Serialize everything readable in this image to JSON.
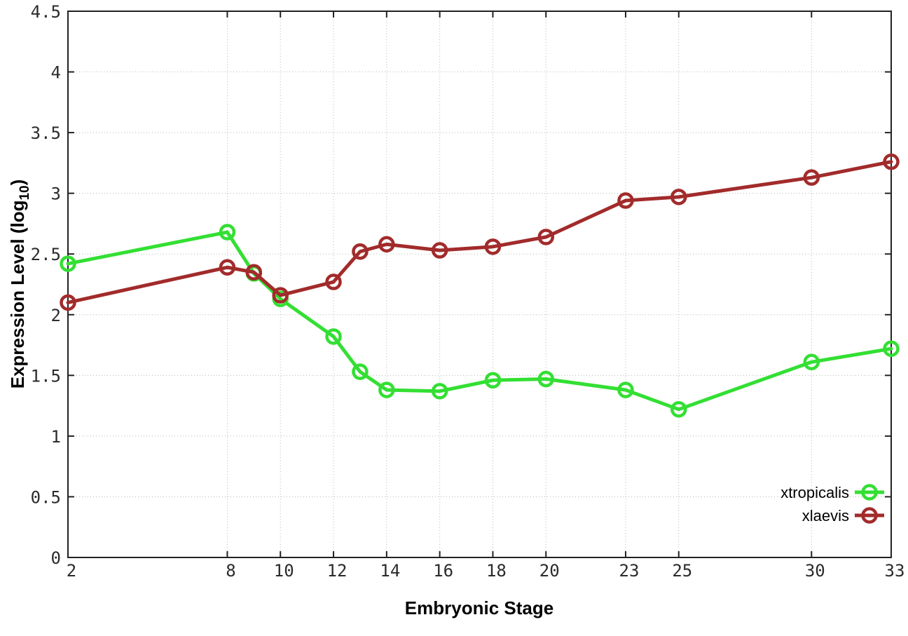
{
  "chart_data": {
    "type": "line",
    "title": "",
    "xlabel": "Embryonic Stage",
    "ylabel": "Expression Level (log10)",
    "ylabel_parts": {
      "prefix": "Expression Level (log",
      "subscript": "10",
      "suffix": ")"
    },
    "xlim": [
      2,
      33
    ],
    "ylim": [
      0,
      4.5
    ],
    "grid": true,
    "legend_position": "bottom-right",
    "xticks": [
      2,
      8,
      10,
      12,
      14,
      16,
      18,
      20,
      23,
      25,
      30,
      33
    ],
    "xtick_labels": [
      "2",
      "8",
      "10",
      "12",
      "14",
      "16",
      "18",
      "20",
      "23",
      "25",
      "30",
      "33"
    ],
    "yticks": [
      0,
      0.5,
      1,
      1.5,
      2,
      2.5,
      3,
      3.5,
      4,
      4.5
    ],
    "ytick_labels": [
      "0",
      "0.5",
      "1",
      "1.5",
      "2",
      "2.5",
      "3",
      "3.5",
      "4",
      "4.5"
    ],
    "x": [
      2,
      8,
      9,
      10,
      12,
      13,
      14,
      16,
      18,
      20,
      23,
      25,
      30,
      33
    ],
    "series": [
      {
        "name": "xtropicalis",
        "color": "#33DF33",
        "values": [
          2.42,
          2.68,
          2.34,
          2.13,
          1.82,
          1.53,
          1.38,
          1.37,
          1.46,
          1.47,
          1.38,
          1.22,
          1.61,
          1.72
        ]
      },
      {
        "name": "xlaevis",
        "color": "#A22B2B",
        "values": [
          2.1,
          2.39,
          2.35,
          2.16,
          2.27,
          2.52,
          2.58,
          2.53,
          2.56,
          2.64,
          2.94,
          2.97,
          3.13,
          3.26
        ]
      }
    ]
  }
}
